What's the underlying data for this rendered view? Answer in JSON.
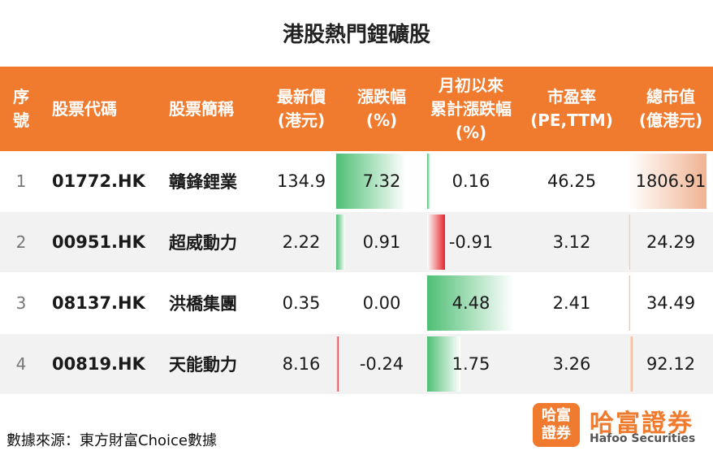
{
  "title": "港股熱門鋰礦股",
  "columns": [
    {
      "lines": [
        "序",
        "號"
      ]
    },
    {
      "lines": [
        "股票代碼"
      ]
    },
    {
      "lines": [
        "股票簡稱"
      ]
    },
    {
      "lines": [
        "最新價",
        "(港元)"
      ]
    },
    {
      "lines": [
        "漲跌幅",
        "(%)"
      ]
    },
    {
      "lines": [
        "月初以來",
        "累計漲跌幅",
        "(%)"
      ]
    },
    {
      "lines": [
        "市盈率",
        "(PE,TTM)"
      ]
    },
    {
      "lines": [
        "總市值",
        "(億港元)"
      ]
    }
  ],
  "rows": [
    {
      "idx": "1",
      "code": "01772.HK",
      "name": "贛鋒鋰業",
      "price": "134.9",
      "change": "7.32",
      "change_num": 7.32,
      "mtd": "0.16",
      "mtd_num": 0.16,
      "pe": "46.25",
      "cap": "1806.91",
      "cap_num": 1806.91
    },
    {
      "idx": "2",
      "code": "00951.HK",
      "name": "超威動力",
      "price": "2.22",
      "change": "0.91",
      "change_num": 0.91,
      "mtd": "-0.91",
      "mtd_num": -0.91,
      "pe": "3.12",
      "cap": "24.29",
      "cap_num": 24.29
    },
    {
      "idx": "3",
      "code": "08137.HK",
      "name": "洪橋集團",
      "price": "0.35",
      "change": "0.00",
      "change_num": 0.0,
      "mtd": "4.48",
      "mtd_num": 4.48,
      "pe": "2.41",
      "cap": "34.49",
      "cap_num": 34.49
    },
    {
      "idx": "4",
      "code": "00819.HK",
      "name": "天能動力",
      "price": "8.16",
      "change": "-0.24",
      "change_num": -0.24,
      "mtd": "1.75",
      "mtd_num": 1.75,
      "pe": "3.26",
      "cap": "92.12",
      "cap_num": 92.12
    }
  ],
  "footer": "數據來源：東方財富Choice數據",
  "logo": {
    "box_line1": "哈富",
    "box_line2": "證券",
    "name_cn": "哈富證券",
    "name_en": "Hafoo Securities"
  },
  "colors": {
    "header": "#f07a2e",
    "positive": "#4fbf75",
    "negative": "#e3262c",
    "cap_bar": "#f0b392",
    "row_alt": "#f2f2f2"
  }
}
